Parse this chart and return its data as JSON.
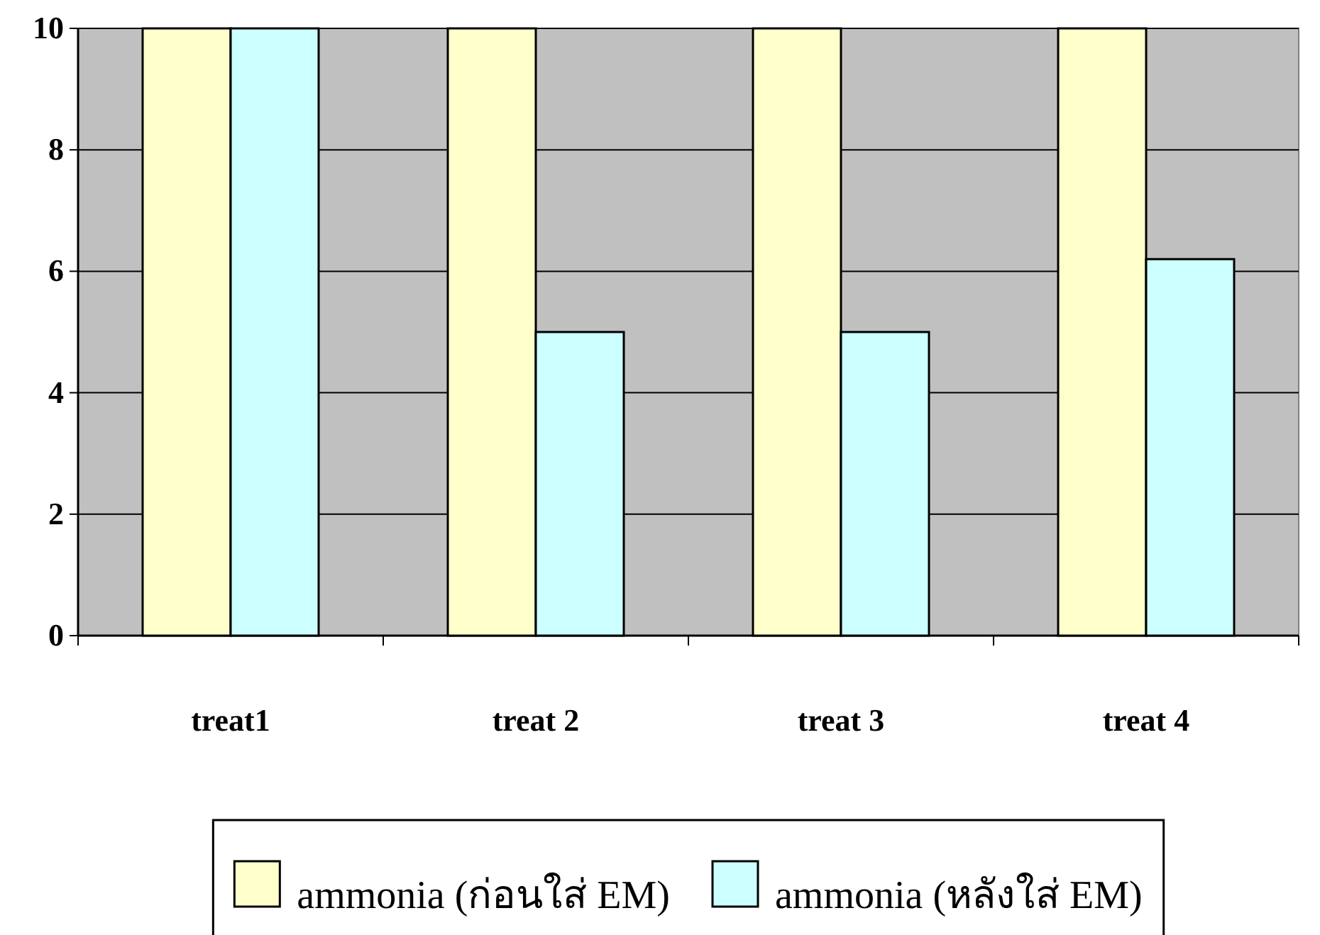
{
  "chart_data": {
    "type": "bar",
    "categories": [
      "treat1",
      "treat 2",
      "treat 3",
      "treat 4"
    ],
    "series": [
      {
        "name": "ammonia (ก่อนใส่ EM)",
        "color": "#ffffcc",
        "values": [
          10,
          10,
          10,
          10
        ]
      },
      {
        "name": "ammonia (หลังใส่ EM)",
        "color": "#ccffff",
        "values": [
          10,
          5,
          5,
          6.2
        ]
      }
    ],
    "ylim": [
      0,
      10
    ],
    "yticks": [
      0,
      2,
      4,
      6,
      8,
      10
    ],
    "grid": "y",
    "legend": "bottom"
  }
}
